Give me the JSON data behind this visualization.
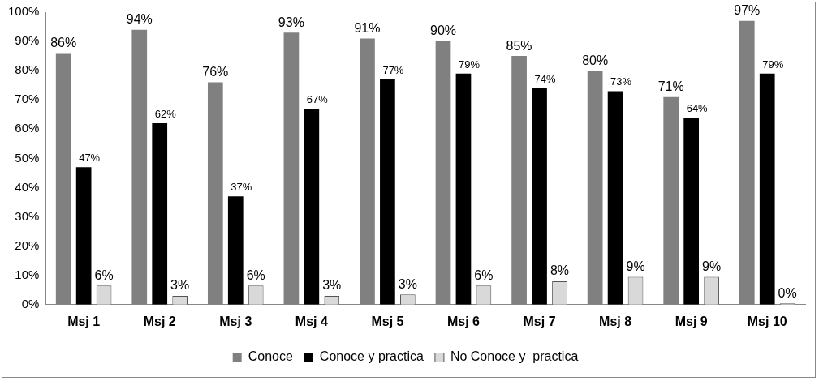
{
  "chart_data": {
    "type": "bar",
    "categories": [
      "Msj 1",
      "Msj 2",
      "Msj 3",
      "Msj 4",
      "Msj 5",
      "Msj 6",
      "Msj 7",
      "Msj 8",
      "Msj 9",
      "Msj 10"
    ],
    "series": [
      {
        "name": "Conoce",
        "color": "#808080",
        "values": [
          86,
          94,
          76,
          93,
          91,
          90,
          85,
          80,
          71,
          97
        ],
        "value_labels": [
          "86%",
          "94%",
          "76%",
          "93%",
          "91%",
          "90%",
          "85%",
          "80%",
          "71%",
          "97%"
        ]
      },
      {
        "name": "Conoce y practica",
        "color": "#000000",
        "values": [
          47,
          62,
          37,
          67,
          77,
          79,
          74,
          73,
          64,
          79
        ],
        "value_labels": [
          "47%",
          "62%",
          "37%",
          "67%",
          "77%",
          "79%",
          "74%",
          "73%",
          "64%",
          "79%"
        ]
      },
      {
        "name": "No Conoce y  practica",
        "color": "#d9d9d9",
        "values": [
          6.5,
          3,
          6.5,
          3,
          3.5,
          6.5,
          8,
          9.5,
          9.5,
          0.4
        ],
        "value_labels": [
          "6%",
          "3%",
          "6%",
          "3%",
          "3%",
          "6%",
          "8%",
          "9%",
          "9%",
          "0%"
        ]
      }
    ],
    "ylim": [
      0,
      100
    ],
    "yticks": [
      {
        "value": 0,
        "label": "0%"
      },
      {
        "value": 10,
        "label": "10%"
      },
      {
        "value": 20,
        "label": "20%"
      },
      {
        "value": 30,
        "label": "30%"
      },
      {
        "value": 40,
        "label": "40%"
      },
      {
        "value": 50,
        "label": "50%"
      },
      {
        "value": 60,
        "label": "60%"
      },
      {
        "value": 70,
        "label": "70%"
      },
      {
        "value": 80,
        "label": "80%"
      },
      {
        "value": 90,
        "label": "90%"
      },
      {
        "value": 100,
        "label": "100%"
      }
    ],
    "legend": "bottom",
    "grid": false
  }
}
